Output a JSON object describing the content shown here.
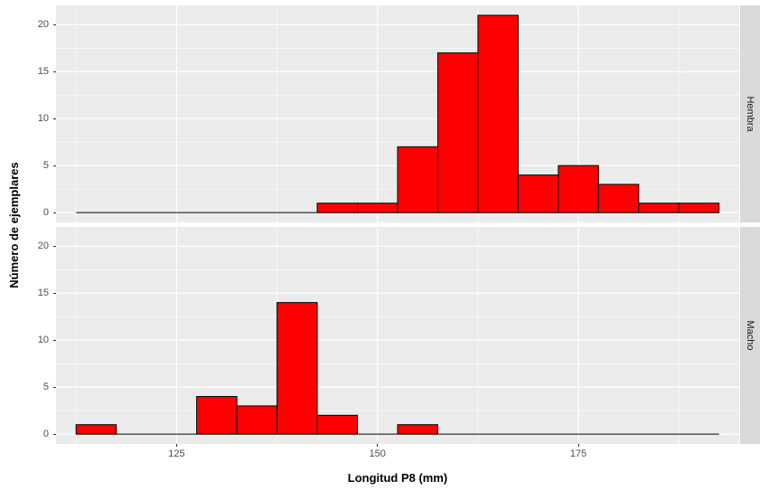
{
  "chart_data": {
    "type": "bar",
    "subtype": "faceted_histogram",
    "title": "",
    "xlabel": "Longitud P8 (mm)",
    "ylabel": "Número de ejemplares",
    "x_ticks": [
      125,
      150,
      175
    ],
    "x_minor_gridlines": [
      112.5,
      137.5,
      162.5,
      187.5
    ],
    "y_ticks": [
      0,
      5,
      10,
      15,
      20
    ],
    "y_minor_gridlines": [
      2.5,
      7.5,
      12.5,
      17.5
    ],
    "x_domain": [
      110,
      195
    ],
    "y_domain": [
      -1.05,
      22.05
    ],
    "bin_width": 5,
    "baseline_extent": [
      112.5,
      192.5
    ],
    "grid": "on",
    "legend": "none",
    "facets": [
      {
        "label": "Hembra",
        "bins": [
          {
            "x0": 142.5,
            "x1": 147.5,
            "count": 1
          },
          {
            "x0": 147.5,
            "x1": 152.5,
            "count": 1
          },
          {
            "x0": 152.5,
            "x1": 157.5,
            "count": 7
          },
          {
            "x0": 157.5,
            "x1": 162.5,
            "count": 17
          },
          {
            "x0": 162.5,
            "x1": 167.5,
            "count": 21
          },
          {
            "x0": 167.5,
            "x1": 172.5,
            "count": 4
          },
          {
            "x0": 172.5,
            "x1": 177.5,
            "count": 5
          },
          {
            "x0": 177.5,
            "x1": 182.5,
            "count": 3
          },
          {
            "x0": 182.5,
            "x1": 187.5,
            "count": 1
          },
          {
            "x0": 187.5,
            "x1": 192.5,
            "count": 1
          }
        ]
      },
      {
        "label": "Macho",
        "bins": [
          {
            "x0": 112.5,
            "x1": 117.5,
            "count": 1
          },
          {
            "x0": 127.5,
            "x1": 132.5,
            "count": 4
          },
          {
            "x0": 132.5,
            "x1": 137.5,
            "count": 3
          },
          {
            "x0": 137.5,
            "x1": 142.5,
            "count": 14
          },
          {
            "x0": 142.5,
            "x1": 147.5,
            "count": 2
          },
          {
            "x0": 152.5,
            "x1": 157.5,
            "count": 1
          }
        ]
      }
    ],
    "colors": {
      "bar_fill": "#FF0000",
      "bar_stroke": "#000000",
      "panel_bg": "#EBEBEB",
      "grid_major": "#FFFFFF",
      "grid_minor": "#FFFFFF",
      "strip_bg": "#D9D9D9",
      "strip_text": "#1A1A1A",
      "axis_text": "#4D4D4D",
      "axis_title": "#000000",
      "tick_mark": "#333333",
      "background": "#FFFFFF"
    }
  }
}
